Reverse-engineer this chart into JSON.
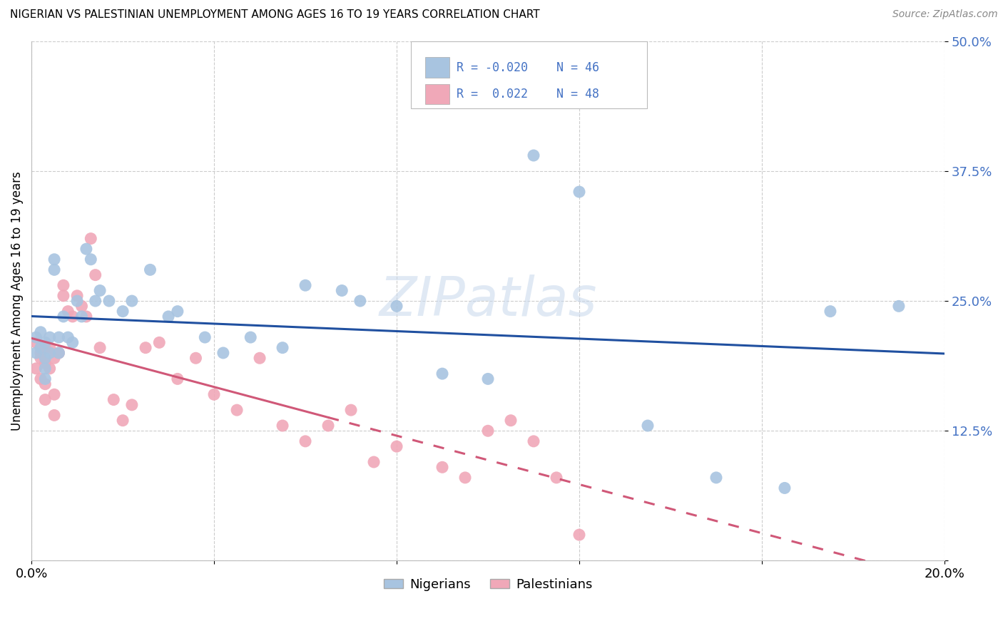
{
  "title": "NIGERIAN VS PALESTINIAN UNEMPLOYMENT AMONG AGES 16 TO 19 YEARS CORRELATION CHART",
  "source": "Source: ZipAtlas.com",
  "ylabel": "Unemployment Among Ages 16 to 19 years",
  "xlim": [
    0,
    0.2
  ],
  "ylim": [
    0,
    0.5
  ],
  "nigerian_R": -0.02,
  "nigerian_N": 46,
  "palestinian_R": 0.022,
  "palestinian_N": 48,
  "nigerian_color": "#a8c4e0",
  "palestinian_color": "#f0a8b8",
  "nigerian_line_color": "#2050a0",
  "palestinian_line_color": "#d05878",
  "watermark": "ZIPatlas",
  "nigerian_x": [
    0.001,
    0.001,
    0.002,
    0.002,
    0.003,
    0.003,
    0.003,
    0.003,
    0.004,
    0.004,
    0.005,
    0.005,
    0.006,
    0.006,
    0.007,
    0.008,
    0.009,
    0.01,
    0.011,
    0.012,
    0.013,
    0.014,
    0.015,
    0.017,
    0.02,
    0.022,
    0.026,
    0.03,
    0.032,
    0.038,
    0.042,
    0.048,
    0.055,
    0.06,
    0.068,
    0.072,
    0.08,
    0.09,
    0.1,
    0.11,
    0.12,
    0.135,
    0.15,
    0.165,
    0.175,
    0.19
  ],
  "nigerian_y": [
    0.215,
    0.2,
    0.22,
    0.205,
    0.21,
    0.195,
    0.185,
    0.175,
    0.215,
    0.2,
    0.29,
    0.28,
    0.215,
    0.2,
    0.235,
    0.215,
    0.21,
    0.25,
    0.235,
    0.3,
    0.29,
    0.25,
    0.26,
    0.25,
    0.24,
    0.25,
    0.28,
    0.235,
    0.24,
    0.215,
    0.2,
    0.215,
    0.205,
    0.265,
    0.26,
    0.25,
    0.245,
    0.18,
    0.175,
    0.39,
    0.355,
    0.13,
    0.08,
    0.07,
    0.24,
    0.245
  ],
  "palestinian_x": [
    0.001,
    0.001,
    0.002,
    0.002,
    0.002,
    0.003,
    0.003,
    0.003,
    0.003,
    0.004,
    0.004,
    0.005,
    0.005,
    0.005,
    0.006,
    0.007,
    0.007,
    0.008,
    0.009,
    0.01,
    0.011,
    0.012,
    0.013,
    0.014,
    0.015,
    0.018,
    0.02,
    0.022,
    0.025,
    0.028,
    0.032,
    0.036,
    0.04,
    0.045,
    0.05,
    0.055,
    0.06,
    0.065,
    0.07,
    0.075,
    0.08,
    0.09,
    0.095,
    0.1,
    0.105,
    0.11,
    0.115,
    0.12
  ],
  "palestinian_y": [
    0.21,
    0.185,
    0.2,
    0.195,
    0.175,
    0.205,
    0.19,
    0.17,
    0.155,
    0.205,
    0.185,
    0.195,
    0.16,
    0.14,
    0.2,
    0.265,
    0.255,
    0.24,
    0.235,
    0.255,
    0.245,
    0.235,
    0.31,
    0.275,
    0.205,
    0.155,
    0.135,
    0.15,
    0.205,
    0.21,
    0.175,
    0.195,
    0.16,
    0.145,
    0.195,
    0.13,
    0.115,
    0.13,
    0.145,
    0.095,
    0.11,
    0.09,
    0.08,
    0.125,
    0.135,
    0.115,
    0.08,
    0.025
  ]
}
